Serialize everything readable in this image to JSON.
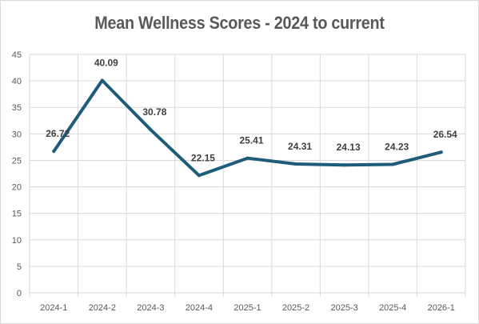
{
  "chart_data": {
    "type": "line",
    "title": "Mean Wellness Scores - 2024 to current",
    "xlabel": "",
    "ylabel": "",
    "categories": [
      "2024-1",
      "2024-2",
      "2024-3",
      "2024-4",
      "2025-1",
      "2025-2",
      "2025-3",
      "2025-4",
      "2026-1"
    ],
    "series": [
      {
        "values": [
          26.72,
          40.09,
          30.78,
          22.15,
          25.41,
          24.31,
          24.13,
          24.23,
          26.54
        ],
        "color": "#1f5c7a",
        "data_labels": [
          "26.72",
          "40.09",
          "30.78",
          "22.15",
          "25.41",
          "24.31",
          "24.13",
          "24.23",
          "26.54"
        ]
      }
    ],
    "ylim": [
      0,
      45
    ],
    "yticks": [
      "0",
      "5",
      "10",
      "15",
      "20",
      "25",
      "30",
      "35",
      "40",
      "45"
    ],
    "grid": true,
    "legend": "none",
    "colors": {
      "line": "#1f5c7a",
      "grid": "#d9d9d9",
      "text": "#595959"
    }
  }
}
